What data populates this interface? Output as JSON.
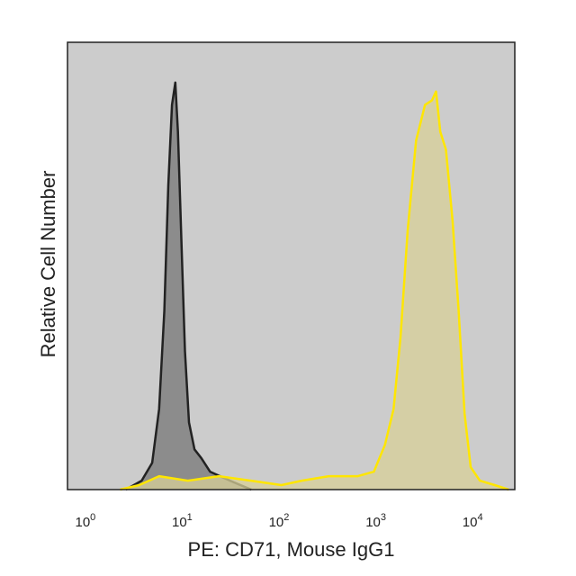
{
  "chart_data": {
    "type": "area",
    "xlabel": "PE: CD71, Mouse IgG1",
    "ylabel": "Relative Cell Number",
    "x_scale": "log",
    "xlim": [
      0.6,
      25000.0
    ],
    "ylim": [
      0,
      100
    ],
    "x_ticks": [
      {
        "value": 1,
        "base": "10",
        "exp": "0"
      },
      {
        "value": 10,
        "base": "10",
        "exp": "1"
      },
      {
        "value": 100,
        "base": "10",
        "exp": "2"
      },
      {
        "value": 1000,
        "base": "10",
        "exp": "3"
      },
      {
        "value": 10000,
        "base": "10",
        "exp": "4"
      }
    ],
    "grid": false,
    "legend": "none",
    "background_color": "#cccccc",
    "series": [
      {
        "color": "#222222",
        "fill": "#8c8c8c",
        "x": [
          2.4,
          3.5,
          4.5,
          5.3,
          6.0,
          6.6,
          7.2,
          7.8,
          8.3,
          9.0,
          9.8,
          10.8,
          12.3,
          14.5,
          17.8,
          22.6,
          28.7,
          36.7,
          47.6
        ],
        "y": [
          0,
          2,
          6,
          18,
          40,
          68,
          86,
          91,
          80,
          56,
          31,
          15,
          9,
          7,
          4,
          3,
          2,
          1,
          0
        ]
      },
      {
        "color": "#ffe600",
        "fill": "#d8d098",
        "x": [
          2.1,
          3.3,
          5.3,
          10.5,
          22.0,
          47.2,
          97.2,
          157,
          300,
          597,
          876,
          1140,
          1400,
          1650,
          1960,
          2390,
          2950,
          3480,
          3840,
          4250,
          4860,
          5700,
          6570,
          7580,
          8760,
          10900,
          15500,
          21600
        ],
        "y": [
          0,
          1,
          3,
          2,
          3,
          2,
          1,
          2,
          3,
          3,
          4,
          10,
          18,
          34,
          58,
          78,
          86,
          87,
          89,
          80,
          76,
          60,
          40,
          17,
          5,
          2,
          1,
          0
        ]
      }
    ]
  }
}
